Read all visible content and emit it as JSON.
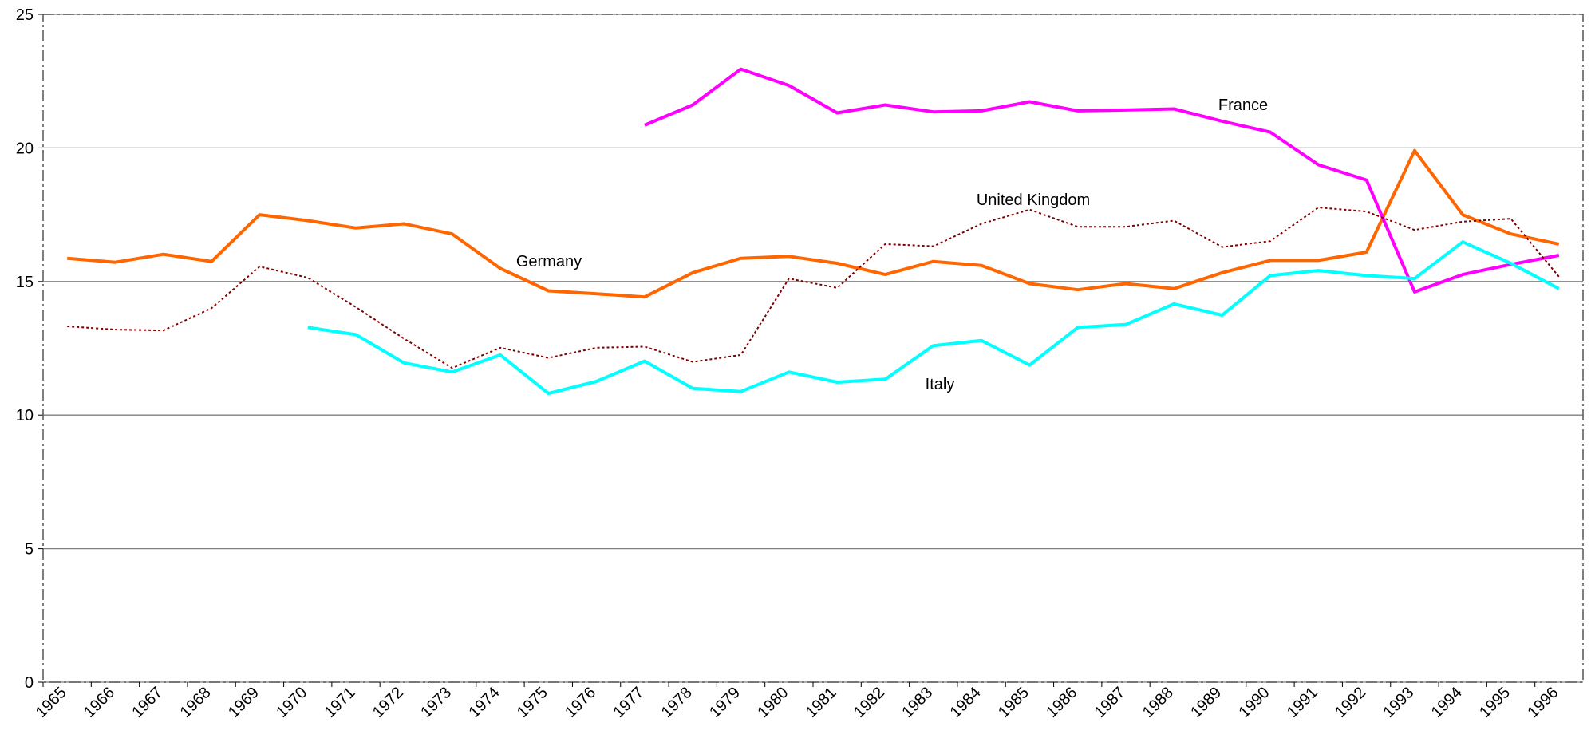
{
  "chart_data": {
    "type": "line",
    "categories": [
      "1965",
      "1966",
      "1967",
      "1968",
      "1969",
      "1970",
      "1971",
      "1972",
      "1973",
      "1974",
      "1975",
      "1976",
      "1977",
      "1978",
      "1979",
      "1980",
      "1981",
      "1982",
      "1983",
      "1984",
      "1985",
      "1986",
      "1987",
      "1988",
      "1989",
      "1990",
      "1991",
      "1992",
      "1993",
      "1994",
      "1995",
      "1996"
    ],
    "series": [
      {
        "name": "Germany",
        "color": "#ff6600",
        "line_style": "solid",
        "values": [
          15.87,
          15.72,
          16.02,
          15.75,
          17.5,
          17.28,
          17.0,
          17.16,
          16.78,
          15.49,
          14.65,
          14.54,
          14.42,
          15.33,
          15.87,
          15.94,
          15.68,
          15.26,
          15.75,
          15.6,
          14.92,
          14.69,
          14.92,
          14.73,
          15.33,
          15.79,
          15.79,
          16.1,
          19.9,
          17.5,
          16.78,
          16.4
        ]
      },
      {
        "name": "France",
        "color": "#ff00ff",
        "line_style": "solid",
        "values": [
          null,
          null,
          null,
          null,
          null,
          null,
          null,
          null,
          null,
          null,
          null,
          null,
          20.85,
          21.61,
          22.95,
          22.34,
          21.31,
          21.61,
          21.35,
          21.39,
          21.73,
          21.39,
          21.42,
          21.46,
          21.0,
          20.59,
          19.37,
          18.8,
          14.61,
          15.26,
          15.64,
          15.98
        ]
      },
      {
        "name": "Italy",
        "color": "#00ffff",
        "line_style": "solid",
        "values": [
          null,
          null,
          null,
          null,
          null,
          13.28,
          13.01,
          11.95,
          11.61,
          12.25,
          10.81,
          11.26,
          12.02,
          11.0,
          10.88,
          11.61,
          11.23,
          11.34,
          12.6,
          12.79,
          11.87,
          13.28,
          13.39,
          14.16,
          13.74,
          15.22,
          15.41,
          15.22,
          15.11,
          16.48,
          15.68,
          14.73
        ]
      },
      {
        "name": "United Kingdom",
        "color": "#800000",
        "line_style": "dotted",
        "values": [
          13.32,
          13.2,
          13.17,
          14.0,
          15.56,
          15.14,
          14.04,
          12.86,
          11.76,
          12.52,
          12.14,
          12.52,
          12.56,
          11.99,
          12.25,
          15.11,
          14.76,
          16.4,
          16.32,
          17.16,
          17.69,
          17.05,
          17.05,
          17.28,
          16.29,
          16.51,
          17.77,
          17.62,
          16.93,
          17.24,
          17.35,
          15.18
        ]
      }
    ],
    "ylim": [
      0,
      25
    ],
    "yticks": [
      0,
      5,
      10,
      15,
      20,
      25
    ],
    "grid": true
  }
}
